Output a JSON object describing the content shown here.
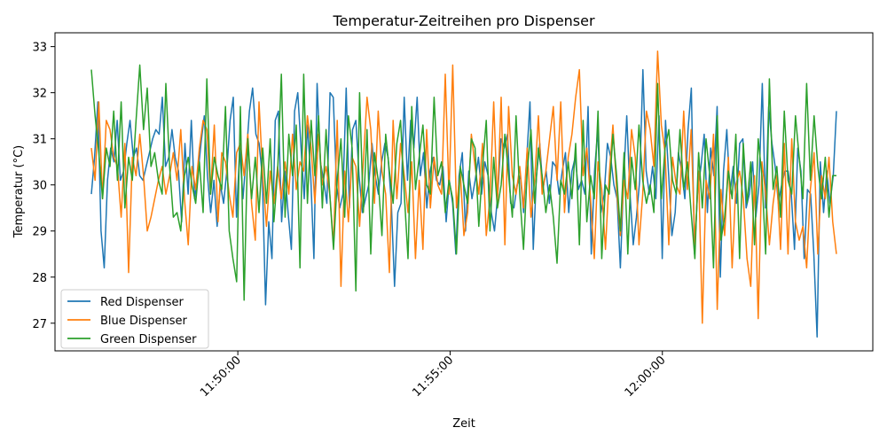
{
  "chart_data": {
    "type": "line",
    "title": "Temperatur-Zeitreihen pro Dispenser",
    "xlabel": "Zeit",
    "ylabel": "Temperatur (°C)",
    "x_range": [
      "11:46:33",
      "12:04:06"
    ],
    "ylim": [
      26.4,
      33.3
    ],
    "x_ticks": [
      "11:50:00",
      "11:55:00",
      "12:00:00"
    ],
    "y_ticks": [
      27,
      28,
      29,
      30,
      31,
      32,
      33
    ],
    "grid": false,
    "legend_position": "lower-left",
    "series": [
      {
        "name": "Red Dispenser",
        "color": "#1f77b4",
        "values": [
          29.8,
          30.6,
          31.8,
          29.0,
          28.2,
          30.1,
          30.8,
          30.5,
          31.4,
          30.1,
          30.3,
          30.9,
          31.4,
          30.6,
          30.8,
          30.2,
          30.1,
          30.4,
          30.7,
          31.0,
          31.2,
          31.1,
          31.9,
          30.4,
          30.6,
          31.2,
          30.6,
          30.3,
          29.2,
          30.9,
          29.8,
          31.4,
          29.7,
          30.2,
          30.9,
          31.5,
          30.2,
          29.4,
          30.1,
          29.1,
          30.0,
          29.6,
          30.3,
          31.4,
          31.9,
          29.3,
          30.8,
          29.7,
          30.6,
          31.6,
          32.1,
          31.1,
          30.9,
          30.2,
          27.4,
          29.2,
          28.4,
          31.4,
          31.6,
          29.2,
          30.3,
          29.4,
          28.6,
          31.6,
          32.0,
          30.8,
          29.7,
          31.3,
          30.2,
          28.4,
          32.2,
          30.5,
          30.1,
          29.6,
          32.0,
          31.9,
          30.0,
          29.5,
          29.8,
          32.1,
          29.5,
          31.2,
          31.4,
          30.2,
          29.4,
          29.7,
          30.0,
          30.9,
          30.2,
          29.8,
          30.5,
          30.9,
          30.6,
          29.6,
          27.8,
          29.4,
          29.6,
          31.9,
          30.1,
          31.4,
          30.8,
          31.9,
          30.2,
          30.7,
          29.5,
          30.3,
          30.6,
          30.1,
          30.0,
          30.4,
          29.2,
          30.1,
          29.6,
          28.5,
          30.2,
          30.7,
          29.0,
          30.3,
          29.7,
          30.1,
          30.6,
          29.8,
          30.5,
          30.2,
          29.4,
          29.0,
          29.8,
          31.0,
          30.8,
          31.1,
          29.6,
          29.5,
          30.0,
          30.2,
          29.4,
          30.6,
          31.8,
          28.6,
          30.2,
          30.9,
          29.9,
          30.3,
          29.6,
          30.5,
          30.4,
          29.8,
          30.3,
          30.7,
          29.4,
          30.3,
          30.6,
          29.9,
          30.1,
          29.8,
          31.7,
          28.5,
          30.3,
          31.2,
          29.4,
          29.8,
          30.9,
          30.6,
          30.0,
          29.7,
          28.2,
          30.1,
          31.5,
          29.8,
          28.7,
          29.3,
          30.1,
          32.5,
          30.3,
          29.8,
          30.4,
          29.7,
          31.5,
          28.4,
          31.4,
          30.2,
          28.9,
          29.4,
          30.7,
          30.3,
          29.7,
          31.2,
          32.1,
          28.5,
          29.9,
          30.4,
          31.1,
          29.4,
          30.8,
          30.2,
          31.7,
          28.0,
          30.3,
          31.2,
          29.8,
          30.4,
          29.6,
          30.9,
          31.0,
          29.5,
          29.8,
          30.5,
          29.3,
          30.0,
          32.2,
          29.5,
          31.7,
          30.9,
          30.4,
          29.6,
          30.0,
          30.3,
          30.3,
          29.8,
          28.6,
          30.8,
          30.3,
          28.4,
          29.9,
          29.8,
          28.5,
          26.7,
          30.5,
          29.4,
          30.3,
          29.6,
          30.2,
          31.6
        ],
        "x_start": "11:46:33",
        "x_end": "12:04:06"
      },
      {
        "name": "Blue Dispenser",
        "color": "#ff7f0e",
        "values": [
          30.8,
          30.1,
          31.8,
          29.7,
          31.4,
          31.2,
          30.6,
          30.4,
          29.3,
          30.9,
          28.1,
          30.6,
          30.2,
          31.1,
          30.2,
          29.0,
          29.3,
          29.7,
          30.1,
          30.4,
          29.8,
          30.2,
          30.7,
          30.1,
          31.2,
          29.7,
          28.7,
          30.4,
          29.9,
          30.8,
          31.4,
          31.2,
          29.8,
          31.3,
          29.2,
          30.7,
          30.5,
          29.8,
          29.3,
          30.7,
          30.9,
          30.2,
          31.1,
          29.6,
          28.8,
          31.8,
          30.2,
          29.1,
          30.3,
          29.6,
          30.4,
          29.7,
          30.5,
          29.8,
          31.1,
          29.9,
          30.5,
          30.3,
          31.5,
          30.8,
          29.6,
          31.1,
          30.0,
          30.4,
          29.8,
          28.7,
          31.4,
          27.8,
          30.3,
          29.2,
          30.6,
          30.4,
          29.1,
          30.5,
          31.9,
          31.2,
          29.6,
          31.6,
          30.3,
          29.8,
          28.1,
          31.4,
          29.7,
          30.9,
          30.2,
          29.4,
          30.5,
          28.4,
          30.1,
          28.6,
          31.2,
          29.5,
          30.6,
          30.0,
          29.8,
          32.4,
          29.8,
          32.6,
          29.5,
          30.3,
          28.9,
          29.4,
          31.1,
          30.4,
          29.8,
          30.9,
          28.9,
          29.7,
          31.8,
          29.6,
          31.9,
          28.7,
          31.7,
          30.2,
          29.8,
          30.4,
          29.5,
          30.8,
          29.3,
          30.1,
          31.5,
          29.8,
          30.3,
          31.0,
          31.7,
          30.1,
          31.8,
          29.4,
          30.6,
          31.1,
          31.9,
          32.5,
          30.2,
          30.8,
          29.7,
          28.4,
          30.5,
          29.9,
          28.6,
          30.2,
          31.3,
          29.9,
          28.9,
          30.1,
          29.7,
          31.2,
          30.6,
          28.7,
          29.8,
          31.6,
          31.2,
          30.4,
          32.9,
          31.3,
          30.7,
          28.7,
          30.6,
          30.0,
          29.8,
          31.6,
          29.9,
          31.2,
          28.7,
          30.3,
          27.0,
          30.1,
          29.7,
          31.1,
          27.3,
          29.9,
          28.9,
          30.6,
          28.2,
          30.0,
          30.3,
          29.7,
          28.4,
          27.8,
          30.2,
          27.1,
          30.5,
          29.8,
          28.7,
          29.6,
          30.2,
          28.6,
          30.9,
          28.5,
          31.0,
          29.2,
          28.8,
          29.1,
          28.2,
          29.9,
          30.7,
          28.5,
          30.2,
          29.7,
          30.6,
          29.2,
          28.5
        ],
        "x_start": "11:46:33",
        "x_end": "12:04:06"
      },
      {
        "name": "Green Dispenser",
        "color": "#2ca02c",
        "values": [
          32.5,
          31.5,
          30.7,
          29.7,
          30.8,
          30.4,
          31.6,
          30.1,
          31.8,
          29.5,
          30.6,
          30.1,
          31.4,
          32.6,
          31.2,
          32.1,
          30.4,
          30.7,
          30.1,
          29.8,
          32.2,
          30.4,
          29.3,
          29.4,
          29.0,
          30.2,
          30.6,
          30.0,
          29.6,
          30.5,
          29.4,
          32.3,
          29.8,
          30.6,
          30.2,
          29.9,
          31.7,
          29.0,
          28.4,
          27.9,
          31.7,
          27.5,
          31.0,
          29.7,
          30.6,
          29.4,
          30.8,
          29.6,
          31.0,
          29.2,
          30.3,
          32.4,
          29.3,
          31.1,
          30.2,
          31.3,
          28.2,
          32.4,
          29.6,
          31.4,
          30.2,
          31.5,
          29.5,
          31.2,
          29.8,
          28.6,
          30.1,
          31.0,
          29.3,
          31.5,
          30.8,
          27.7,
          32.0,
          29.4,
          31.2,
          28.5,
          30.7,
          30.1,
          28.9,
          31.1,
          30.3,
          29.6,
          30.9,
          31.4,
          29.8,
          28.4,
          31.7,
          29.9,
          30.6,
          31.3,
          30.0,
          29.8,
          31.9,
          30.2,
          30.5,
          29.4,
          30.1,
          29.7,
          28.5,
          30.4,
          30.0,
          29.6,
          31.0,
          30.8,
          29.1,
          30.4,
          31.4,
          29.0,
          30.6,
          29.5,
          30.0,
          31.1,
          30.2,
          29.3,
          31.5,
          29.8,
          28.6,
          30.3,
          31.2,
          29.6,
          30.8,
          30.2,
          29.4,
          30.0,
          29.3,
          28.3,
          30.1,
          29.8,
          30.5,
          29.7,
          30.9,
          28.7,
          31.4,
          29.2,
          30.2,
          29.7,
          31.6,
          28.4,
          30.0,
          29.8,
          31.1,
          30.2,
          29.0,
          30.7,
          28.5,
          30.6,
          29.9,
          31.3,
          30.1,
          29.6,
          30.0,
          29.4,
          32.2,
          29.7,
          30.8,
          31.2,
          30.1,
          29.8,
          31.2,
          29.9,
          30.5,
          29.4,
          28.4,
          30.7,
          29.5,
          31.0,
          30.2,
          28.2,
          31.5,
          28.8,
          29.3,
          30.3,
          29.7,
          31.1,
          28.4,
          30.9,
          29.6,
          30.5,
          28.7,
          31.0,
          30.2,
          28.5,
          32.3,
          29.9,
          30.4,
          29.3,
          31.6,
          30.1,
          29.8,
          31.5,
          30.6,
          29.7,
          32.2,
          30.1,
          31.5,
          30.4,
          29.7,
          30.6,
          29.3,
          30.2,
          30.2
        ],
        "x_start": "11:46:33",
        "x_end": "12:04:06"
      }
    ]
  }
}
